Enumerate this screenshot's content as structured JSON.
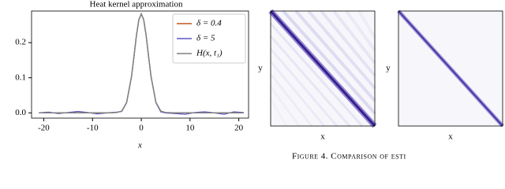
{
  "chart_data": [
    {
      "type": "line",
      "title": "Heat kernel approximation",
      "xlabel": "x",
      "x": [
        -21,
        -19,
        -17,
        -15,
        -13,
        -11,
        -9,
        -7,
        -5,
        -4,
        -3,
        -2,
        -1.5,
        -1,
        -0.5,
        0,
        0.5,
        1,
        1.5,
        2,
        3,
        4,
        5,
        7,
        9,
        11,
        13,
        15,
        17,
        19,
        21
      ],
      "series": [
        {
          "name": "δ = 0.4",
          "color": "#c0561a",
          "values": [
            0,
            0,
            0,
            0,
            0,
            0,
            0,
            0,
            0.001,
            0.005,
            0.03,
            0.104,
            0.161,
            0.22,
            0.265,
            0.282,
            0.265,
            0.22,
            0.161,
            0.104,
            0.03,
            0.005,
            0.001,
            0,
            0,
            0,
            0,
            0,
            0,
            0,
            0
          ]
        },
        {
          "name": "δ = 5",
          "color": "#5b57c0",
          "values": [
            0,
            0.002,
            -0.002,
            0.001,
            0.004,
            0.001,
            -0.003,
            0,
            0.002,
            0.004,
            0.029,
            0.103,
            0.16,
            0.221,
            0.266,
            0.281,
            0.266,
            0.221,
            0.16,
            0.103,
            0.029,
            0.003,
            0,
            -0.002,
            -0.004,
            0.001,
            0.003,
            0,
            -0.004,
            0.003,
            0.001
          ]
        },
        {
          "name": "H(x, t₁)",
          "color": "#808080",
          "values": [
            0,
            0,
            0,
            0,
            0,
            0,
            0,
            0,
            0.001,
            0.005,
            0.03,
            0.104,
            0.161,
            0.22,
            0.265,
            0.282,
            0.265,
            0.22,
            0.161,
            0.104,
            0.03,
            0.005,
            0.001,
            0,
            0,
            0,
            0,
            0,
            0,
            0,
            0
          ]
        }
      ],
      "xlim": [
        -22.5,
        22
      ],
      "xticks": [
        -20,
        -10,
        0,
        10,
        20
      ],
      "ylim": [
        -0.015,
        0.29
      ],
      "yticks": [
        {
          "value": 0,
          "label": "0.0"
        },
        {
          "value": 0.1,
          "label": "0.1"
        },
        {
          "value": 0.2,
          "label": "0.2"
        }
      ],
      "legend": "upper-right"
    },
    {
      "type": "heatmap",
      "xlabel": "x",
      "ylabel": "y"
    },
    {
      "type": "heatmap",
      "xlabel": "x",
      "ylabel": "y"
    }
  ],
  "caption": "Figure 4. Comparison of esti"
}
